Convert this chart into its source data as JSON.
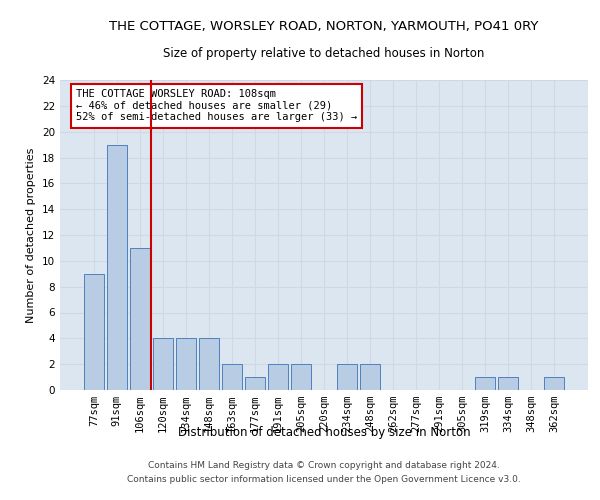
{
  "title": "THE COTTAGE, WORSLEY ROAD, NORTON, YARMOUTH, PO41 0RY",
  "subtitle": "Size of property relative to detached houses in Norton",
  "xlabel": "Distribution of detached houses by size in Norton",
  "ylabel": "Number of detached properties",
  "footer_line1": "Contains HM Land Registry data © Crown copyright and database right 2024.",
  "footer_line2": "Contains public sector information licensed under the Open Government Licence v3.0.",
  "categories": [
    "77sqm",
    "91sqm",
    "106sqm",
    "120sqm",
    "134sqm",
    "148sqm",
    "163sqm",
    "177sqm",
    "191sqm",
    "205sqm",
    "220sqm",
    "234sqm",
    "248sqm",
    "262sqm",
    "277sqm",
    "291sqm",
    "305sqm",
    "319sqm",
    "334sqm",
    "348sqm",
    "362sqm"
  ],
  "values": [
    9,
    19,
    11,
    4,
    4,
    4,
    2,
    1,
    2,
    2,
    0,
    2,
    2,
    0,
    0,
    0,
    0,
    1,
    1,
    0,
    1
  ],
  "bar_color": "#b8cce4",
  "bar_edge_color": "#4f81bd",
  "grid_color": "#d0d8e8",
  "background_color": "#dce6f1",
  "vline_color": "#cc0000",
  "vline_x": 2.5,
  "annotation_text": "THE COTTAGE WORSLEY ROAD: 108sqm\n← 46% of detached houses are smaller (29)\n52% of semi-detached houses are larger (33) →",
  "annotation_box_color": "#ffffff",
  "annotation_box_edge": "#cc0000",
  "ylim": [
    0,
    24
  ],
  "yticks": [
    0,
    2,
    4,
    6,
    8,
    10,
    12,
    14,
    16,
    18,
    20,
    22,
    24
  ],
  "title_fontsize": 9.5,
  "subtitle_fontsize": 8.5,
  "ylabel_fontsize": 8,
  "xlabel_fontsize": 8.5,
  "tick_fontsize": 7.5,
  "footer_fontsize": 6.5,
  "annot_fontsize": 7.5
}
